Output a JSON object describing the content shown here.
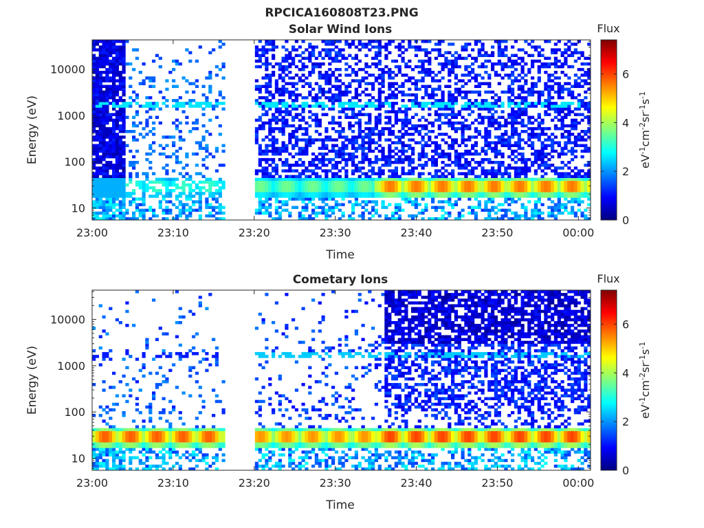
{
  "figure_title": "RPCICA160808T23.PNG",
  "colorbar": {
    "title": "Flux",
    "ticks": [
      "0",
      "2",
      "4",
      "6"
    ],
    "tick_values": [
      0,
      2,
      4,
      6
    ],
    "range": [
      0,
      7.4
    ],
    "unit_label": "eV-1cm-2sr-1s-1",
    "colormap": "jet"
  },
  "chart_data": [
    {
      "type": "heatmap",
      "title": "Solar Wind Ions",
      "xlabel": "Time",
      "ylabel": "Energy (eV)",
      "x_ticks": [
        "23:00",
        "23:10",
        "23:20",
        "23:30",
        "23:40",
        "23:50",
        "00:00"
      ],
      "x_range_minutes": [
        0,
        61.5
      ],
      "y_scale": "log",
      "y_ticks": [
        "10",
        "100",
        "1000",
        "10000"
      ],
      "y_range": [
        5.5,
        43000
      ],
      "z_range": [
        0,
        7.4
      ],
      "data_gap": {
        "start": "23:16.5",
        "end": "23:20"
      },
      "features": [
        {
          "name": "solar-wind proton band",
          "energy_eV": [
            20,
            40
          ],
          "flux_max": 5.6
        },
        {
          "name": "alpha band",
          "energy_eV": [
            1400,
            1900
          ],
          "flux_max": 2.8
        }
      ]
    },
    {
      "type": "heatmap",
      "title": "Cometary Ions",
      "xlabel": "Time",
      "ylabel": "Energy (eV)",
      "x_ticks": [
        "23:00",
        "23:10",
        "23:20",
        "23:30",
        "23:40",
        "23:50",
        "00:00"
      ],
      "x_range_minutes": [
        0,
        61.5
      ],
      "y_scale": "log",
      "y_ticks": [
        "10",
        "100",
        "1000",
        "10000"
      ],
      "y_range": [
        5.5,
        43000
      ],
      "z_range": [
        0,
        7.4
      ],
      "data_gap": {
        "start": "23:16.5",
        "end": "23:20"
      },
      "features": [
        {
          "name": "low-energy cometary band",
          "energy_eV": [
            18,
            42
          ],
          "flux_max": 6.2
        },
        {
          "name": "secondary band",
          "energy_eV": [
            1400,
            1900
          ],
          "flux_max": 2.5
        }
      ]
    }
  ]
}
